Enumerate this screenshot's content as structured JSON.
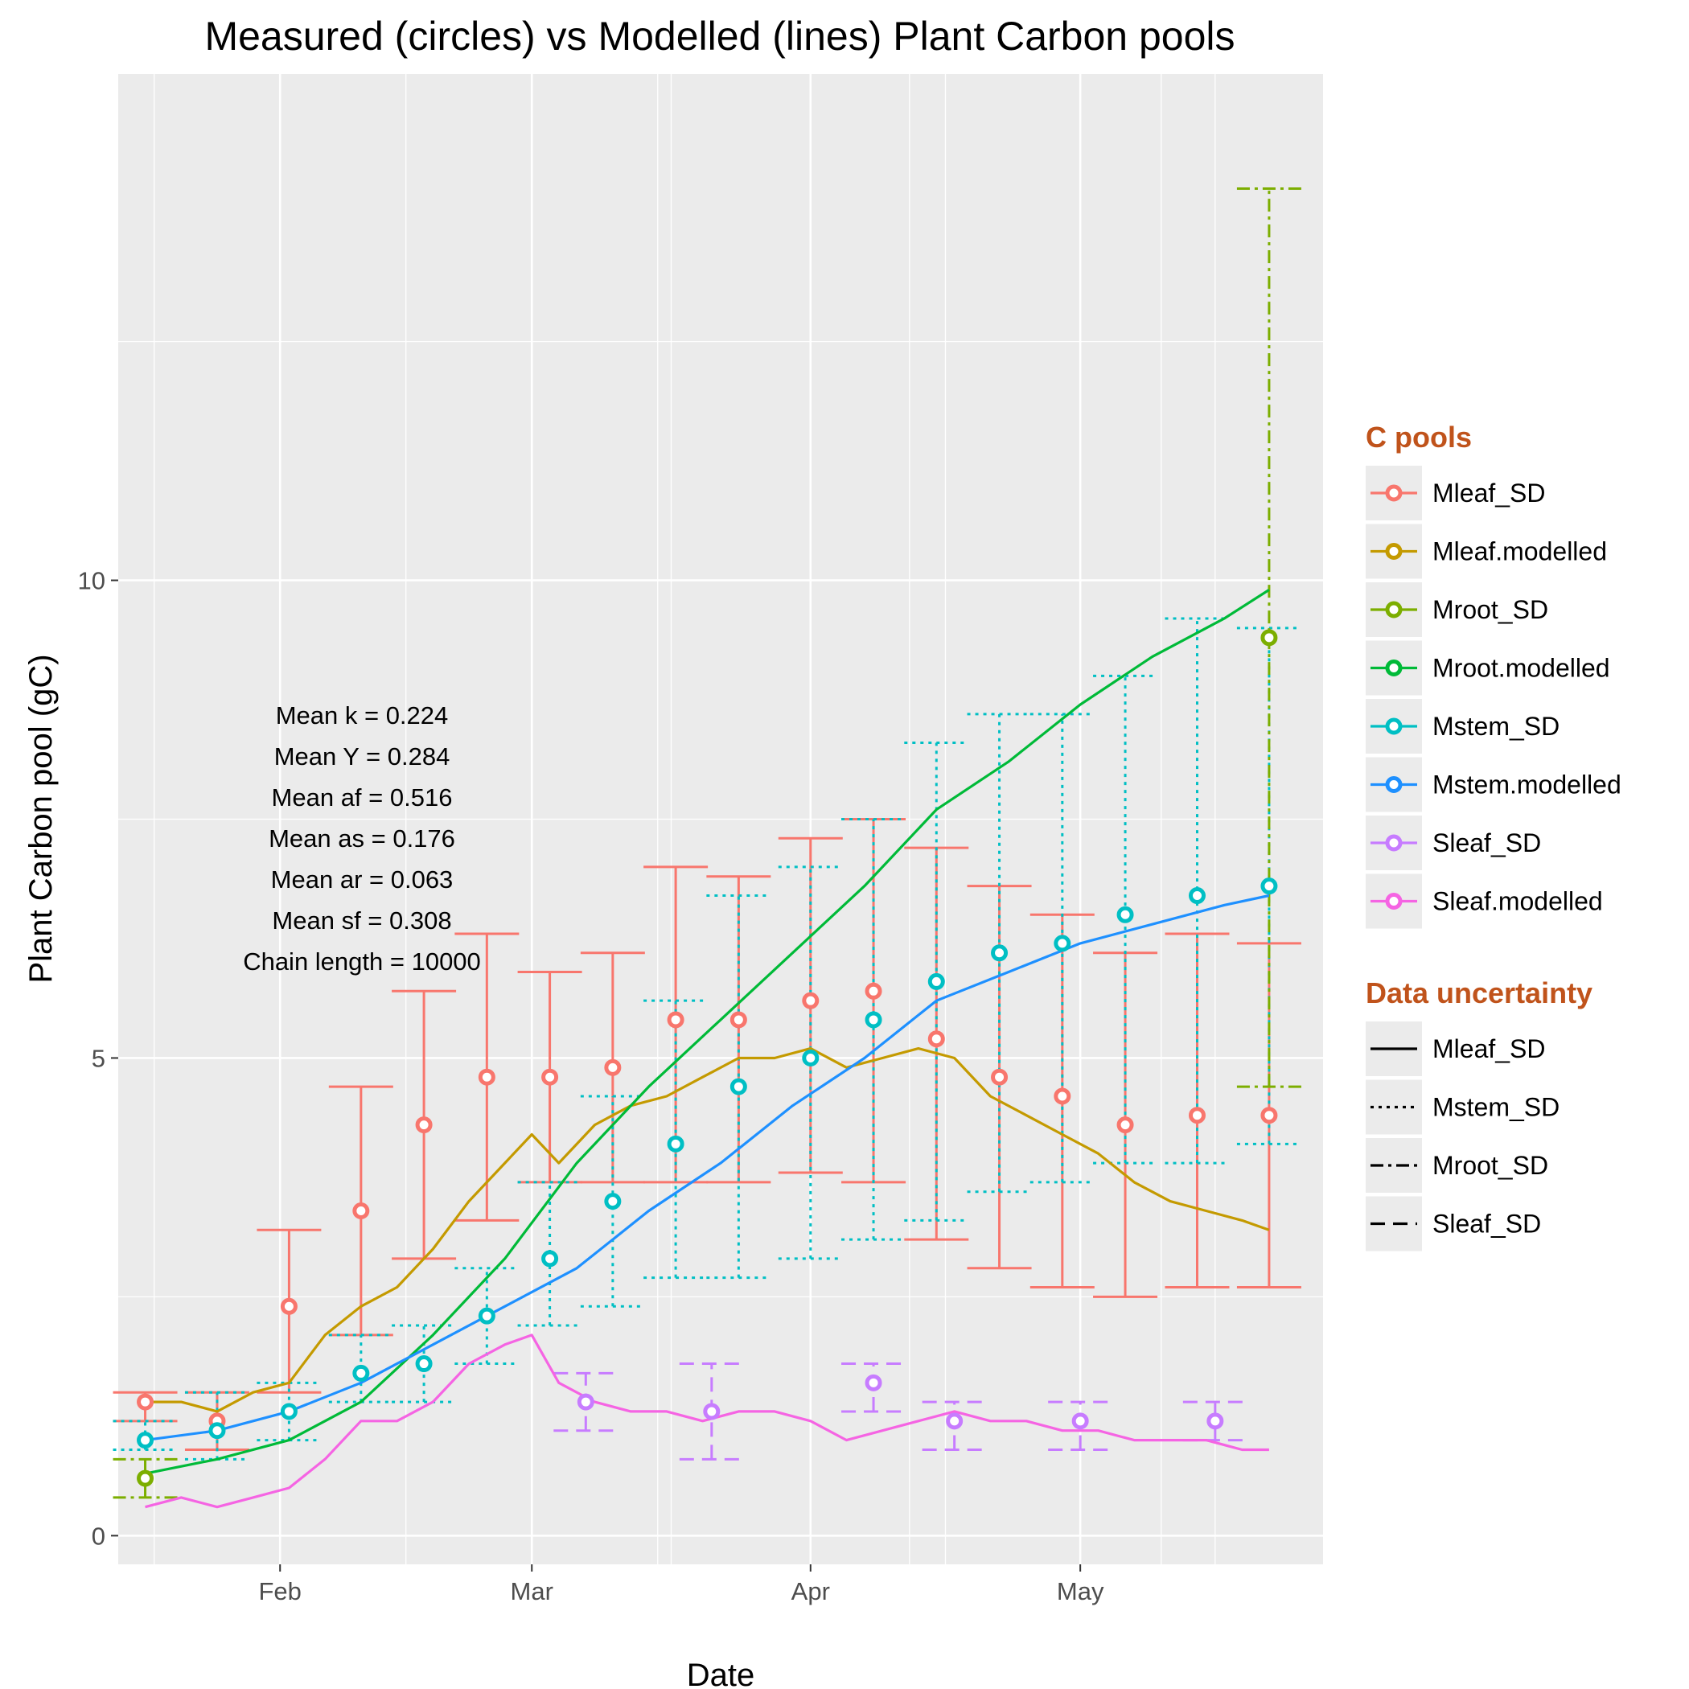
{
  "chart_data": {
    "type": "line",
    "title": "Measured (circles) vs Modelled (lines) Plant Carbon pools",
    "xlabel": "Date",
    "ylabel": "Plant Carbon pool (gC)",
    "x_ticks": [
      {
        "label": "Feb",
        "date": "2015-02-01"
      },
      {
        "label": "Mar",
        "date": "2015-03-01"
      },
      {
        "label": "Apr",
        "date": "2015-04-01"
      },
      {
        "label": "May",
        "date": "2015-05-01"
      }
    ],
    "x_range": [
      "2015-01-14",
      "2015-05-28"
    ],
    "y_ticks": [
      0,
      5,
      10
    ],
    "ylim": [
      -0.3,
      15.3
    ],
    "grid": true,
    "legend_position": "right",
    "annotations": [
      "Mean k =  0.224",
      "Mean Y =  0.284",
      "Mean af =  0.516",
      "Mean as =  0.176",
      "Mean ar =  0.063",
      "Mean sf =  0.308",
      "Chain length =  10000"
    ],
    "legend_color": {
      "title": "C pools",
      "items": [
        {
          "label": "Mleaf_SD",
          "color": "#F8766D"
        },
        {
          "label": "Mleaf.modelled",
          "color": "#C49A00"
        },
        {
          "label": "Mroot_SD",
          "color": "#7CAE00"
        },
        {
          "label": "Mroot.modelled",
          "color": "#00BA38"
        },
        {
          "label": "Mstem_SD",
          "color": "#00BFC4"
        },
        {
          "label": "Mstem.modelled",
          "color": "#1E90FF"
        },
        {
          "label": "Sleaf_SD",
          "color": "#C77CFF"
        },
        {
          "label": "Sleaf.modelled",
          "color": "#F564E3"
        }
      ]
    },
    "legend_linetype": {
      "title": "Data uncertainty",
      "items": [
        {
          "label": "Mleaf_SD",
          "dash": "solid"
        },
        {
          "label": "Mstem_SD",
          "dash": "dotted"
        },
        {
          "label": "Mroot_SD",
          "dash": "dotdash"
        },
        {
          "label": "Sleaf_SD",
          "dash": "dashed"
        }
      ]
    },
    "measured": [
      {
        "name": "Mleaf_SD",
        "color": "#F8766D",
        "dash": "solid",
        "points": [
          {
            "x": "2015-01-17",
            "y": 1.4,
            "lo": 1.2,
            "hi": 1.5
          },
          {
            "x": "2015-01-25",
            "y": 1.2,
            "lo": 0.9,
            "hi": 1.5
          },
          {
            "x": "2015-02-02",
            "y": 2.4,
            "lo": 1.5,
            "hi": 3.2
          },
          {
            "x": "2015-02-10",
            "y": 3.4,
            "lo": 2.1,
            "hi": 4.7
          },
          {
            "x": "2015-02-17",
            "y": 4.3,
            "lo": 2.9,
            "hi": 5.7
          },
          {
            "x": "2015-02-24",
            "y": 4.8,
            "lo": 3.3,
            "hi": 6.3
          },
          {
            "x": "2015-03-03",
            "y": 4.8,
            "lo": 3.7,
            "hi": 5.9
          },
          {
            "x": "2015-03-10",
            "y": 4.9,
            "lo": 3.7,
            "hi": 6.1
          },
          {
            "x": "2015-03-17",
            "y": 5.4,
            "lo": 3.7,
            "hi": 7.0
          },
          {
            "x": "2015-03-24",
            "y": 5.4,
            "lo": 3.7,
            "hi": 6.9
          },
          {
            "x": "2015-04-01",
            "y": 5.6,
            "lo": 3.8,
            "hi": 7.3
          },
          {
            "x": "2015-04-08",
            "y": 5.7,
            "lo": 3.7,
            "hi": 7.5
          },
          {
            "x": "2015-04-15",
            "y": 5.2,
            "lo": 3.1,
            "hi": 7.2
          },
          {
            "x": "2015-04-22",
            "y": 4.8,
            "lo": 2.8,
            "hi": 6.8
          },
          {
            "x": "2015-04-29",
            "y": 4.6,
            "lo": 2.6,
            "hi": 6.5
          },
          {
            "x": "2015-05-06",
            "y": 4.3,
            "lo": 2.5,
            "hi": 6.1
          },
          {
            "x": "2015-05-14",
            "y": 4.4,
            "lo": 2.6,
            "hi": 6.3
          },
          {
            "x": "2015-05-22",
            "y": 4.4,
            "lo": 2.6,
            "hi": 6.2
          }
        ]
      },
      {
        "name": "Mstem_SD",
        "color": "#00BFC4",
        "dash": "dotted",
        "points": [
          {
            "x": "2015-01-17",
            "y": 1.0,
            "lo": 0.9,
            "hi": 1.2
          },
          {
            "x": "2015-01-25",
            "y": 1.1,
            "lo": 0.8,
            "hi": 1.5
          },
          {
            "x": "2015-02-02",
            "y": 1.3,
            "lo": 1.0,
            "hi": 1.6
          },
          {
            "x": "2015-02-10",
            "y": 1.7,
            "lo": 1.4,
            "hi": 2.1
          },
          {
            "x": "2015-02-17",
            "y": 1.8,
            "lo": 1.4,
            "hi": 2.2
          },
          {
            "x": "2015-02-24",
            "y": 2.3,
            "lo": 1.8,
            "hi": 2.8
          },
          {
            "x": "2015-03-03",
            "y": 2.9,
            "lo": 2.2,
            "hi": 3.7
          },
          {
            "x": "2015-03-10",
            "y": 3.5,
            "lo": 2.4,
            "hi": 4.6
          },
          {
            "x": "2015-03-17",
            "y": 4.1,
            "lo": 2.7,
            "hi": 5.6
          },
          {
            "x": "2015-03-24",
            "y": 4.7,
            "lo": 2.7,
            "hi": 6.7
          },
          {
            "x": "2015-04-01",
            "y": 5.0,
            "lo": 2.9,
            "hi": 7.0
          },
          {
            "x": "2015-04-08",
            "y": 5.4,
            "lo": 3.1,
            "hi": 7.5
          },
          {
            "x": "2015-04-15",
            "y": 5.8,
            "lo": 3.3,
            "hi": 8.3
          },
          {
            "x": "2015-04-22",
            "y": 6.1,
            "lo": 3.6,
            "hi": 8.6
          },
          {
            "x": "2015-04-29",
            "y": 6.2,
            "lo": 3.7,
            "hi": 8.6
          },
          {
            "x": "2015-05-06",
            "y": 6.5,
            "lo": 3.9,
            "hi": 9.0
          },
          {
            "x": "2015-05-14",
            "y": 6.7,
            "lo": 3.9,
            "hi": 9.6
          },
          {
            "x": "2015-05-22",
            "y": 6.8,
            "lo": 4.1,
            "hi": 9.5
          }
        ]
      },
      {
        "name": "Mroot_SD",
        "color": "#7CAE00",
        "dash": "dotdash",
        "points": [
          {
            "x": "2015-01-17",
            "y": 0.6,
            "lo": 0.4,
            "hi": 0.8
          },
          {
            "x": "2015-05-22",
            "y": 9.4,
            "lo": 4.7,
            "hi": 14.1
          }
        ]
      },
      {
        "name": "Sleaf_SD",
        "color": "#C77CFF",
        "dash": "dashed",
        "points": [
          {
            "x": "2015-03-07",
            "y": 1.4,
            "lo": 1.1,
            "hi": 1.7
          },
          {
            "x": "2015-03-21",
            "y": 1.3,
            "lo": 0.8,
            "hi": 1.8
          },
          {
            "x": "2015-04-08",
            "y": 1.6,
            "lo": 1.3,
            "hi": 1.8
          },
          {
            "x": "2015-04-17",
            "y": 1.2,
            "lo": 0.9,
            "hi": 1.4
          },
          {
            "x": "2015-05-01",
            "y": 1.2,
            "lo": 0.9,
            "hi": 1.4
          },
          {
            "x": "2015-05-16",
            "y": 1.2,
            "lo": 1.0,
            "hi": 1.4
          }
        ]
      }
    ],
    "modelled": [
      {
        "name": "Mleaf.modelled",
        "color": "#C49A00",
        "x": [
          "2015-01-17",
          "2015-01-21",
          "2015-01-25",
          "2015-01-29",
          "2015-02-02",
          "2015-02-06",
          "2015-02-10",
          "2015-02-14",
          "2015-02-18",
          "2015-02-22",
          "2015-02-26",
          "2015-03-01",
          "2015-03-04",
          "2015-03-08",
          "2015-03-12",
          "2015-03-16",
          "2015-03-20",
          "2015-03-24",
          "2015-03-28",
          "2015-04-01",
          "2015-04-05",
          "2015-04-09",
          "2015-04-13",
          "2015-04-17",
          "2015-04-21",
          "2015-04-25",
          "2015-04-29",
          "2015-05-03",
          "2015-05-07",
          "2015-05-11",
          "2015-05-15",
          "2015-05-19",
          "2015-05-22"
        ],
        "y": [
          1.4,
          1.4,
          1.3,
          1.5,
          1.6,
          2.1,
          2.4,
          2.6,
          3.0,
          3.5,
          3.9,
          4.2,
          3.9,
          4.3,
          4.5,
          4.6,
          4.8,
          5.0,
          5.0,
          5.1,
          4.9,
          5.0,
          5.1,
          5.0,
          4.6,
          4.4,
          4.2,
          4.0,
          3.7,
          3.5,
          3.4,
          3.3,
          3.2
        ]
      },
      {
        "name": "Mroot.modelled",
        "color": "#00BA38",
        "x": [
          "2015-01-17",
          "2015-01-25",
          "2015-02-02",
          "2015-02-10",
          "2015-02-18",
          "2015-02-26",
          "2015-03-06",
          "2015-03-14",
          "2015-03-22",
          "2015-03-30",
          "2015-04-07",
          "2015-04-15",
          "2015-04-23",
          "2015-05-01",
          "2015-05-09",
          "2015-05-17",
          "2015-05-22"
        ],
        "y": [
          0.65,
          0.8,
          1.0,
          1.4,
          2.1,
          2.9,
          3.9,
          4.7,
          5.4,
          6.1,
          6.8,
          7.6,
          8.1,
          8.7,
          9.2,
          9.6,
          9.9
        ]
      },
      {
        "name": "Mstem.modelled",
        "color": "#1E90FF",
        "x": [
          "2015-01-17",
          "2015-01-25",
          "2015-02-02",
          "2015-02-10",
          "2015-02-18",
          "2015-02-26",
          "2015-03-06",
          "2015-03-14",
          "2015-03-22",
          "2015-03-30",
          "2015-04-07",
          "2015-04-15",
          "2015-04-23",
          "2015-05-01",
          "2015-05-09",
          "2015-05-17",
          "2015-05-22"
        ],
        "y": [
          1.0,
          1.1,
          1.3,
          1.6,
          2.0,
          2.4,
          2.8,
          3.4,
          3.9,
          4.5,
          5.0,
          5.6,
          5.9,
          6.2,
          6.4,
          6.6,
          6.7
        ]
      },
      {
        "name": "Sleaf.modelled",
        "color": "#F564E3",
        "x": [
          "2015-01-17",
          "2015-01-21",
          "2015-01-25",
          "2015-01-29",
          "2015-02-02",
          "2015-02-06",
          "2015-02-10",
          "2015-02-14",
          "2015-02-18",
          "2015-02-22",
          "2015-02-26",
          "2015-03-01",
          "2015-03-04",
          "2015-03-08",
          "2015-03-12",
          "2015-03-16",
          "2015-03-20",
          "2015-03-24",
          "2015-03-28",
          "2015-04-01",
          "2015-04-05",
          "2015-04-09",
          "2015-04-13",
          "2015-04-17",
          "2015-04-21",
          "2015-04-25",
          "2015-04-29",
          "2015-05-03",
          "2015-05-07",
          "2015-05-11",
          "2015-05-15",
          "2015-05-19",
          "2015-05-22"
        ],
        "y": [
          0.3,
          0.4,
          0.3,
          0.4,
          0.5,
          0.8,
          1.2,
          1.2,
          1.4,
          1.8,
          2.0,
          2.1,
          1.6,
          1.4,
          1.3,
          1.3,
          1.2,
          1.3,
          1.3,
          1.2,
          1.0,
          1.1,
          1.2,
          1.3,
          1.2,
          1.2,
          1.1,
          1.1,
          1.0,
          1.0,
          1.0,
          0.9,
          0.9
        ]
      }
    ]
  }
}
